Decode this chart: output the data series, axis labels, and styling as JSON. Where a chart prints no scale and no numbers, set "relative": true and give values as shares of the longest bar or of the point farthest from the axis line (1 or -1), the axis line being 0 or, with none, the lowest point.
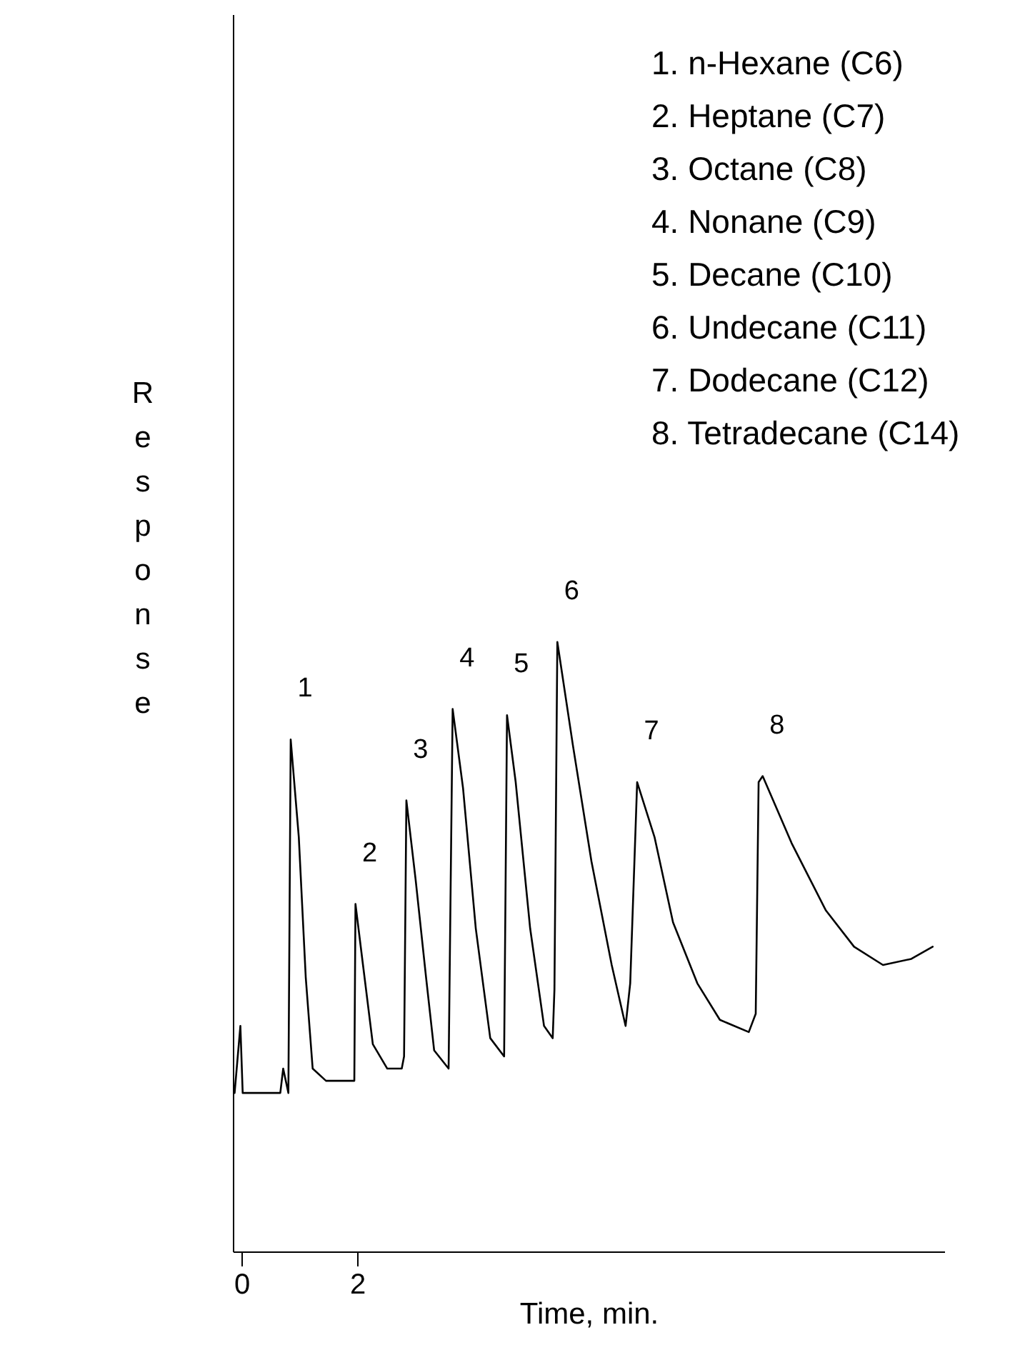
{
  "chart_data": {
    "type": "line",
    "relative": true,
    "xlabel": "Time, min.",
    "ylabel": "Response",
    "xlim": [
      -0.15,
      12.15
    ],
    "xticks": [
      0,
      2
    ],
    "grid": false,
    "legend": false,
    "marker": "none",
    "line_style": "solid",
    "series": [
      {
        "color": "#000000",
        "x": [
          -0.12,
          -0.02,
          0.02,
          0.67,
          0.72,
          0.81,
          0.85,
          0.99,
          1.11,
          1.23,
          1.46,
          1.95,
          1.97,
          2.1,
          2.27,
          2.52,
          2.77,
          2.81,
          2.85,
          3.01,
          3.19,
          3.33,
          3.58,
          3.65,
          3.83,
          4.05,
          4.3,
          4.54,
          4.59,
          4.74,
          4.99,
          5.23,
          5.38,
          5.41,
          5.46,
          5.73,
          6.05,
          6.4,
          6.64,
          6.72,
          6.84,
          7.14,
          7.46,
          7.88,
          8.27,
          8.77,
          8.89,
          8.94,
          9.01,
          9.51,
          10.1,
          10.59,
          11.09,
          11.58,
          11.95
        ],
        "values": [
          0.26,
          0.37,
          0.26,
          0.26,
          0.3,
          0.26,
          0.84,
          0.68,
          0.45,
          0.3,
          0.28,
          0.28,
          0.57,
          0.47,
          0.34,
          0.3,
          0.3,
          0.32,
          0.74,
          0.61,
          0.45,
          0.33,
          0.3,
          0.89,
          0.76,
          0.53,
          0.35,
          0.32,
          0.88,
          0.77,
          0.53,
          0.37,
          0.35,
          0.43,
          1.0,
          0.83,
          0.64,
          0.47,
          0.37,
          0.44,
          0.77,
          0.68,
          0.54,
          0.44,
          0.38,
          0.36,
          0.39,
          0.77,
          0.78,
          0.67,
          0.56,
          0.5,
          0.47,
          0.48,
          0.5
        ]
      }
    ],
    "annotations": [
      {
        "text": "1",
        "x": 0.85,
        "y": 0.84
      },
      {
        "text": "2",
        "x": 1.97,
        "y": 0.57
      },
      {
        "text": "3",
        "x": 2.85,
        "y": 0.74
      },
      {
        "text": "4",
        "x": 3.65,
        "y": 0.89
      },
      {
        "text": "5",
        "x": 4.59,
        "y": 0.88
      },
      {
        "text": "6",
        "x": 5.46,
        "y": 1.0
      },
      {
        "text": "7",
        "x": 6.84,
        "y": 0.77
      },
      {
        "text": "8",
        "x": 9.01,
        "y": 0.78
      },
      "1. n-Hexane (C6)",
      "2. Heptane (C7)",
      "3. Octane (C8)",
      "4. Nonane (C9)",
      "5. Decane (C10)",
      "6. Undecane (C11)",
      "7. Dodecane (C12)",
      "8. Tetradecane (C14)"
    ]
  }
}
